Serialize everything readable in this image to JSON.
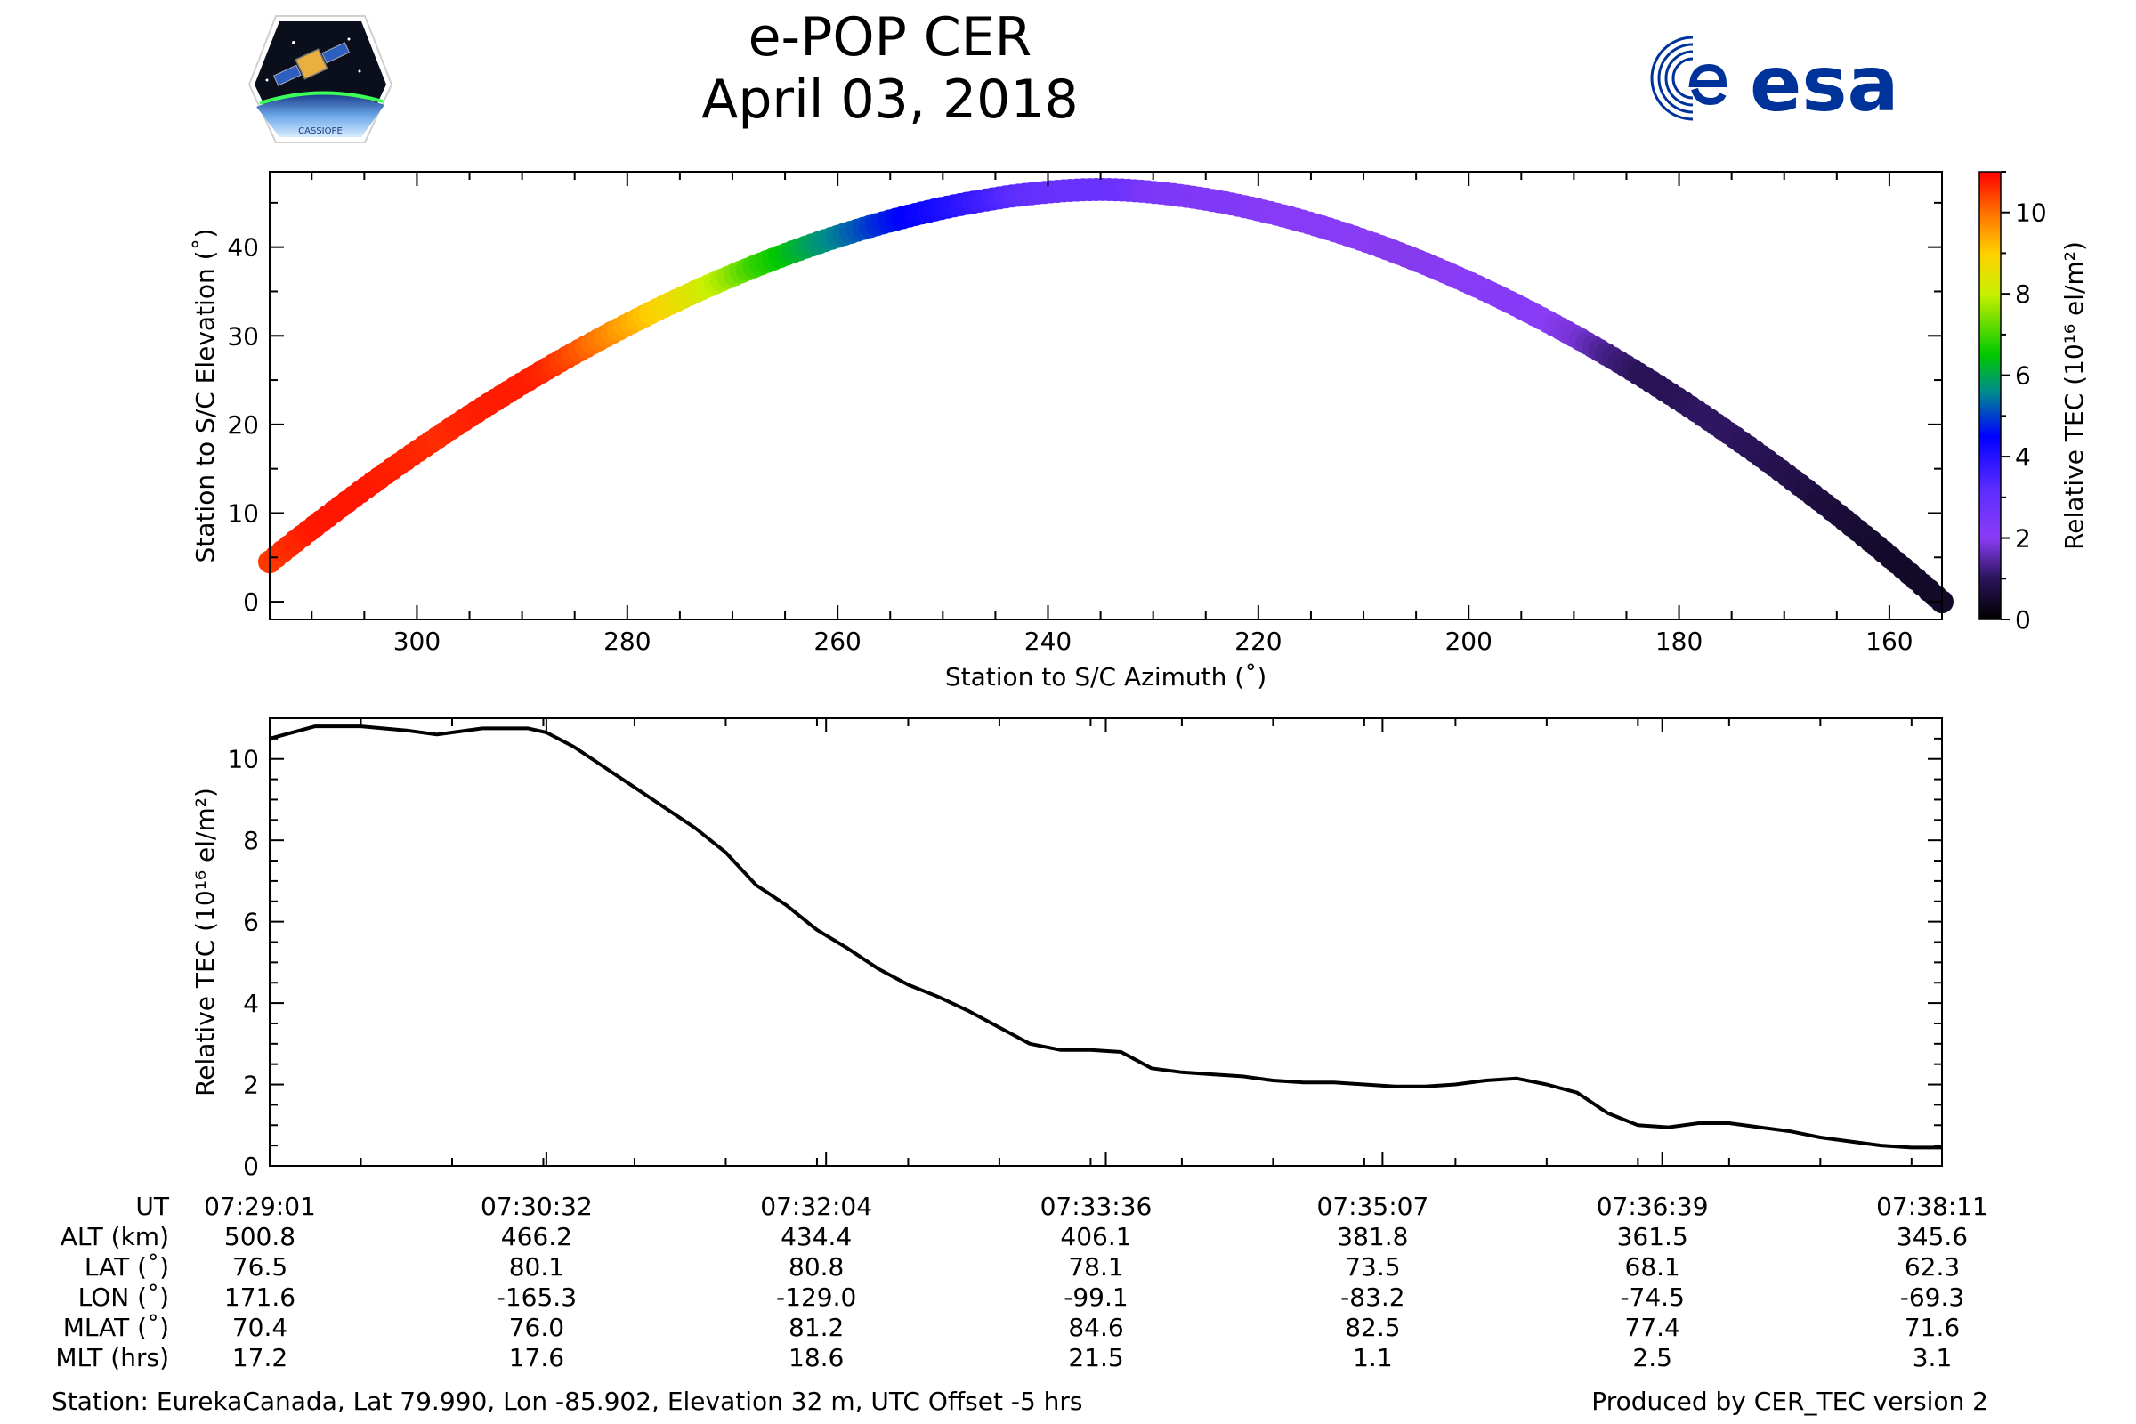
{
  "header": {
    "title": "e-POP CER",
    "date": "April 03, 2018",
    "left_logo_label": "CASSIOPE",
    "right_logo_label": "esa"
  },
  "footer": {
    "station": "Station: EurekaCanada, Lat 79.990, Lon -85.902, Elevation 32 m, UTC Offset -5 hrs",
    "produced": "Produced by CER_TEC version 2"
  },
  "colors": {
    "esa_blue": "#003399",
    "line": "#000000"
  },
  "chart_data": [
    {
      "type": "scatter",
      "title": "",
      "xlabel": "Station to S/C Azimuth (˚)",
      "ylabel": "Station to S/C Elevation (˚)",
      "xlim": [
        314,
        155
      ],
      "ylim": [
        -2,
        48.5
      ],
      "xticks": [
        300,
        280,
        260,
        240,
        220,
        200,
        180,
        160
      ],
      "yticks": [
        0,
        10,
        20,
        30,
        40
      ],
      "arc": {
        "az_start": 314,
        "el_start": 4.5,
        "az_end": 155,
        "el_end": 0,
        "peak_az": 235,
        "peak_el": 46.5
      },
      "color_by": "tec",
      "colorbar": {
        "label": "Relative TEC (10¹⁶ el/m²)",
        "cmap": "gnuplot2_r-like",
        "range": [
          0,
          11
        ],
        "ticks": [
          0,
          2,
          4,
          6,
          8,
          10
        ],
        "stops": [
          {
            "v": 0,
            "color": "#000000"
          },
          {
            "v": 1.0,
            "color": "#2a145a"
          },
          {
            "v": 2.0,
            "color": "#8a3cf5"
          },
          {
            "v": 3.2,
            "color": "#5c2cff"
          },
          {
            "v": 4.5,
            "color": "#0000ff"
          },
          {
            "v": 5.6,
            "color": "#008c8c"
          },
          {
            "v": 6.5,
            "color": "#00c800"
          },
          {
            "v": 8.0,
            "color": "#c8f000"
          },
          {
            "v": 9.0,
            "color": "#ffd000"
          },
          {
            "v": 10.0,
            "color": "#ff7000"
          },
          {
            "v": 11.0,
            "color": "#ff0000"
          }
        ]
      }
    },
    {
      "type": "line",
      "title": "",
      "xlabel": "",
      "ylabel": "Relative TEC (10¹⁶ el/m²)",
      "ylim": [
        0,
        11
      ],
      "yticks": [
        0,
        2,
        4,
        6,
        8,
        10
      ],
      "xlim_seconds": [
        0,
        550
      ],
      "time_ticks_seconds": [
        0,
        91,
        183,
        275,
        366,
        458,
        550
      ],
      "x_seconds": [
        0,
        15,
        30,
        45,
        55,
        70,
        85,
        91,
        100,
        110,
        120,
        130,
        140,
        150,
        160,
        170,
        180,
        190,
        200,
        210,
        220,
        230,
        240,
        250,
        260,
        270,
        280,
        290,
        300,
        310,
        320,
        330,
        340,
        350,
        360,
        370,
        380,
        390,
        400,
        410,
        420,
        430,
        440,
        450,
        460,
        470,
        480,
        490,
        500,
        510,
        520,
        530,
        540,
        550
      ],
      "tec": [
        10.5,
        10.8,
        10.8,
        10.7,
        10.6,
        10.75,
        10.75,
        10.65,
        10.3,
        9.8,
        9.3,
        8.8,
        8.3,
        7.7,
        6.9,
        6.4,
        5.8,
        5.35,
        4.85,
        4.45,
        4.15,
        3.8,
        3.4,
        3.0,
        2.85,
        2.85,
        2.8,
        2.4,
        2.3,
        2.25,
        2.2,
        2.1,
        2.05,
        2.05,
        2.0,
        1.95,
        1.95,
        2.0,
        2.1,
        2.15,
        2.0,
        1.8,
        1.3,
        1.0,
        0.95,
        1.05,
        1.05,
        0.95,
        0.85,
        0.7,
        0.6,
        0.5,
        0.45,
        0.45
      ],
      "table": {
        "row_labels": [
          "UT",
          "ALT (km)",
          "LAT (˚)",
          "LON (˚)",
          "MLAT (˚)",
          "MLT (hrs)"
        ],
        "columns": [
          {
            "UT": "07:29:01",
            "ALT": "500.8",
            "LAT": "76.5",
            "LON": "171.6",
            "MLAT": "70.4",
            "MLT": "17.2"
          },
          {
            "UT": "07:30:32",
            "ALT": "466.2",
            "LAT": "80.1",
            "LON": "-165.3",
            "MLAT": "76.0",
            "MLT": "17.6"
          },
          {
            "UT": "07:32:04",
            "ALT": "434.4",
            "LAT": "80.8",
            "LON": "-129.0",
            "MLAT": "81.2",
            "MLT": "18.6"
          },
          {
            "UT": "07:33:36",
            "ALT": "406.1",
            "LAT": "78.1",
            "LON": "-99.1",
            "MLAT": "84.6",
            "MLT": "21.5"
          },
          {
            "UT": "07:35:07",
            "ALT": "381.8",
            "LAT": "73.5",
            "LON": "-83.2",
            "MLAT": "82.5",
            "MLT": "1.1"
          },
          {
            "UT": "07:36:39",
            "ALT": "361.5",
            "LAT": "68.1",
            "LON": "-74.5",
            "MLAT": "77.4",
            "MLT": "2.5"
          },
          {
            "UT": "07:38:11",
            "ALT": "345.6",
            "LAT": "62.3",
            "LON": "-69.3",
            "MLAT": "71.6",
            "MLT": "3.1"
          }
        ]
      }
    }
  ]
}
